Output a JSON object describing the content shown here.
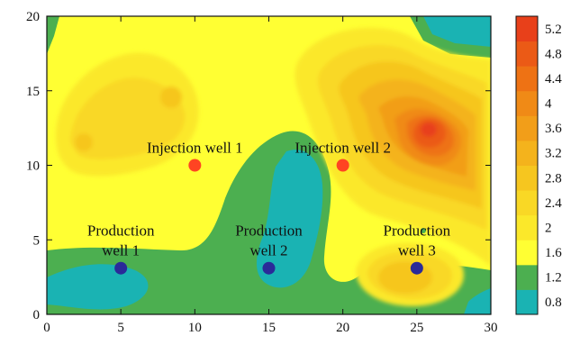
{
  "chart_data": {
    "type": "heatmap",
    "subtype": "filled-contour",
    "title": "",
    "xlabel": "",
    "ylabel": "",
    "xlim": [
      0,
      30
    ],
    "ylim": [
      0,
      20
    ],
    "x_ticks": [
      0,
      5,
      10,
      15,
      20,
      25,
      30
    ],
    "y_ticks": [
      0,
      5,
      10,
      15,
      20
    ],
    "x_tick_labels": [
      "0",
      "5",
      "10",
      "15",
      "20",
      "25",
      "30"
    ],
    "y_tick_labels": [
      "0",
      "5",
      "10",
      "15",
      "20"
    ],
    "colorbar": {
      "labels": [
        "0.8",
        "1.2",
        "1.6",
        "2",
        "2.4",
        "2.8",
        "3.2",
        "3.6",
        "4",
        "4.4",
        "4.8",
        "5.2"
      ],
      "colors": [
        "#1ab3b3",
        "#4caf50",
        "#ffff33",
        "#fbe82a",
        "#f9d825",
        "#f6c61f",
        "#f4b31c",
        "#f29e19",
        "#f08a16",
        "#ee7214",
        "#eb5a16",
        "#e8401a"
      ]
    },
    "wells": [
      {
        "kind": "injection",
        "label_lines": [
          "Injection well 1"
        ],
        "x": 10,
        "y": 10,
        "color": "#ff4422"
      },
      {
        "kind": "injection",
        "label_lines": [
          "Injection well 2"
        ],
        "x": 20,
        "y": 10,
        "color": "#ff4422"
      },
      {
        "kind": "production",
        "label_lines": [
          "Production",
          "well 1"
        ],
        "x": 5,
        "y": 3.1,
        "color": "#2a2a99"
      },
      {
        "kind": "production",
        "label_lines": [
          "Production",
          "well 2"
        ],
        "x": 15,
        "y": 3.1,
        "color": "#2a2a99"
      },
      {
        "kind": "production",
        "label_lines": [
          "Production",
          "well 3"
        ],
        "x": 25,
        "y": 3.1,
        "color": "#2a2a99"
      }
    ],
    "grid": false,
    "legend": "colorbar-right"
  }
}
